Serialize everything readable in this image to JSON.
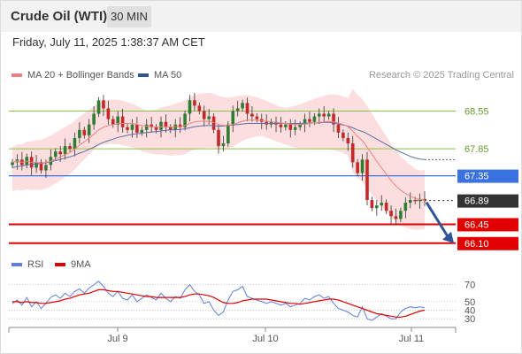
{
  "header": {
    "title": "Crude Oil (WTI)",
    "timeframe": "30 MIN",
    "datetime": "Friday, July 11, 2025 1:38:37 AM CET",
    "research": "Research © 2025 Trading Central"
  },
  "legend_main": [
    {
      "label": "MA 20 + Bollinger Bands",
      "color": "#f08080"
    },
    {
      "label": "MA 50",
      "color": "#2f5597"
    }
  ],
  "legend_rsi": [
    {
      "label": "RSI",
      "color": "#5b7fdb"
    },
    {
      "label": "9MA",
      "color": "#e00000"
    }
  ],
  "colors": {
    "up": "#2e7d32",
    "down": "#c62828",
    "resistance": "#8bc34a",
    "pivot": "#3a73e0",
    "support": "#e00000",
    "last": "#333333",
    "band": "#fcd6d6",
    "arrow": "#2f5597"
  },
  "chart_data": [
    {
      "type": "candlestick",
      "title": "Crude Oil (WTI)",
      "ylim": [
        65.85,
        69.05
      ],
      "x_labels": [
        "Jul 9",
        "Jul 10",
        "Jul 11"
      ],
      "levels": [
        {
          "value": 68.55,
          "label": "68.55",
          "kind": "resistance"
        },
        {
          "value": 67.85,
          "label": "67.85",
          "kind": "resistance"
        },
        {
          "value": 67.35,
          "label": "67.35",
          "kind": "pivot"
        },
        {
          "value": 66.89,
          "label": "66.89",
          "kind": "last"
        },
        {
          "value": 66.45,
          "label": "66.45",
          "kind": "support"
        },
        {
          "value": 66.1,
          "label": "66.10",
          "kind": "support"
        }
      ],
      "closes": [
        67.6,
        67.65,
        67.55,
        67.7,
        67.5,
        67.6,
        67.45,
        67.55,
        67.7,
        67.8,
        67.75,
        67.9,
        67.85,
        68.05,
        68.2,
        68.1,
        68.3,
        68.5,
        68.75,
        68.6,
        68.4,
        68.3,
        68.45,
        68.25,
        68.2,
        68.3,
        68.15,
        68.2,
        68.3,
        68.25,
        68.2,
        68.35,
        68.25,
        68.2,
        68.3,
        68.25,
        68.5,
        68.75,
        68.65,
        68.55,
        68.4,
        68.45,
        68.2,
        67.9,
        67.95,
        68.3,
        68.55,
        68.6,
        68.7,
        68.5,
        68.45,
        68.4,
        68.35,
        68.3,
        68.35,
        68.3,
        68.25,
        68.3,
        68.2,
        68.25,
        68.3,
        68.4,
        68.35,
        68.45,
        68.5,
        68.45,
        68.5,
        68.3,
        68.15,
        68.05,
        67.95,
        67.6,
        67.4,
        67.65,
        66.9,
        66.75,
        66.8,
        66.85,
        66.7,
        66.6,
        66.55,
        66.7,
        66.85,
        66.9,
        66.88,
        66.92,
        66.89
      ],
      "ma20": [
        67.6,
        67.62,
        67.6,
        67.62,
        67.6,
        67.6,
        67.58,
        67.6,
        67.62,
        67.66,
        67.7,
        67.74,
        67.78,
        67.84,
        67.92,
        67.98,
        68.05,
        68.12,
        68.2,
        68.25,
        68.28,
        68.3,
        68.32,
        68.32,
        68.32,
        68.32,
        68.3,
        68.28,
        68.27,
        68.26,
        68.25,
        68.26,
        68.26,
        68.25,
        68.26,
        68.26,
        68.28,
        68.32,
        68.35,
        68.36,
        68.36,
        68.36,
        68.34,
        68.3,
        68.28,
        68.28,
        68.3,
        68.33,
        68.36,
        68.38,
        68.38,
        68.38,
        68.37,
        68.36,
        68.35,
        68.34,
        68.33,
        68.32,
        68.31,
        68.3,
        68.3,
        68.31,
        68.32,
        68.33,
        68.34,
        68.35,
        68.36,
        68.35,
        68.33,
        68.3,
        68.26,
        68.18,
        68.08,
        68.0,
        67.88,
        67.75,
        67.62,
        67.5,
        67.38,
        67.26,
        67.16,
        67.08,
        67.02,
        66.97,
        66.93,
        66.91,
        66.9
      ],
      "ma50": [
        67.5,
        67.52,
        67.53,
        67.55,
        67.56,
        67.57,
        67.58,
        67.59,
        67.61,
        67.63,
        67.65,
        67.68,
        67.7,
        67.73,
        67.77,
        67.8,
        67.84,
        67.88,
        67.93,
        67.97,
        68.0,
        68.03,
        68.06,
        68.08,
        68.1,
        68.12,
        68.13,
        68.14,
        68.15,
        68.16,
        68.17,
        68.18,
        68.19,
        68.2,
        68.2,
        68.21,
        68.22,
        68.24,
        68.26,
        68.27,
        68.28,
        68.28,
        68.28,
        68.27,
        68.27,
        68.28,
        68.29,
        68.3,
        68.31,
        68.32,
        68.32,
        68.32,
        68.32,
        68.32,
        68.32,
        68.32,
        68.32,
        68.32,
        68.32,
        68.32,
        68.32,
        68.32,
        68.33,
        68.33,
        68.33,
        68.34,
        68.34,
        68.33,
        68.31,
        68.29,
        68.27,
        68.24,
        68.2,
        68.17,
        68.13,
        68.08,
        68.03,
        67.98,
        67.93,
        67.88,
        67.83,
        67.79,
        67.75,
        67.71,
        67.68,
        67.66,
        67.65
      ]
    },
    {
      "type": "line",
      "title": "RSI",
      "ylim": [
        25,
        80
      ],
      "y_ticks": [
        "70",
        "50",
        "40",
        "30"
      ],
      "series": [
        {
          "name": "RSI",
          "values": [
            48,
            52,
            46,
            55,
            44,
            50,
            42,
            48,
            55,
            58,
            54,
            60,
            56,
            62,
            65,
            60,
            66,
            70,
            74,
            68,
            60,
            56,
            62,
            54,
            52,
            58,
            50,
            54,
            58,
            55,
            52,
            60,
            54,
            50,
            56,
            54,
            64,
            70,
            62,
            58,
            48,
            50,
            40,
            34,
            38,
            52,
            62,
            64,
            68,
            56,
            54,
            52,
            50,
            48,
            50,
            48,
            46,
            48,
            44,
            46,
            48,
            54,
            52,
            56,
            58,
            54,
            56,
            48,
            42,
            40,
            38,
            34,
            32,
            44,
            30,
            28,
            32,
            36,
            33,
            30,
            30,
            38,
            42,
            44,
            43,
            44,
            43
          ]
        },
        {
          "name": "9MA",
          "values": [
            50,
            50,
            49,
            50,
            49,
            49,
            48,
            48,
            49,
            50,
            51,
            53,
            54,
            56,
            58,
            59,
            60,
            62,
            64,
            64,
            63,
            62,
            62,
            61,
            60,
            59,
            58,
            57,
            56,
            56,
            55,
            55,
            55,
            55,
            55,
            55,
            56,
            58,
            59,
            59,
            58,
            57,
            55,
            52,
            49,
            48,
            48,
            49,
            51,
            52,
            53,
            53,
            53,
            53,
            52,
            51,
            50,
            49,
            48,
            48,
            47,
            48,
            49,
            50,
            51,
            52,
            53,
            53,
            52,
            50,
            48,
            46,
            44,
            42,
            40,
            38,
            36,
            35,
            34,
            33,
            32,
            32,
            33,
            35,
            37,
            39,
            40
          ]
        }
      ]
    }
  ]
}
